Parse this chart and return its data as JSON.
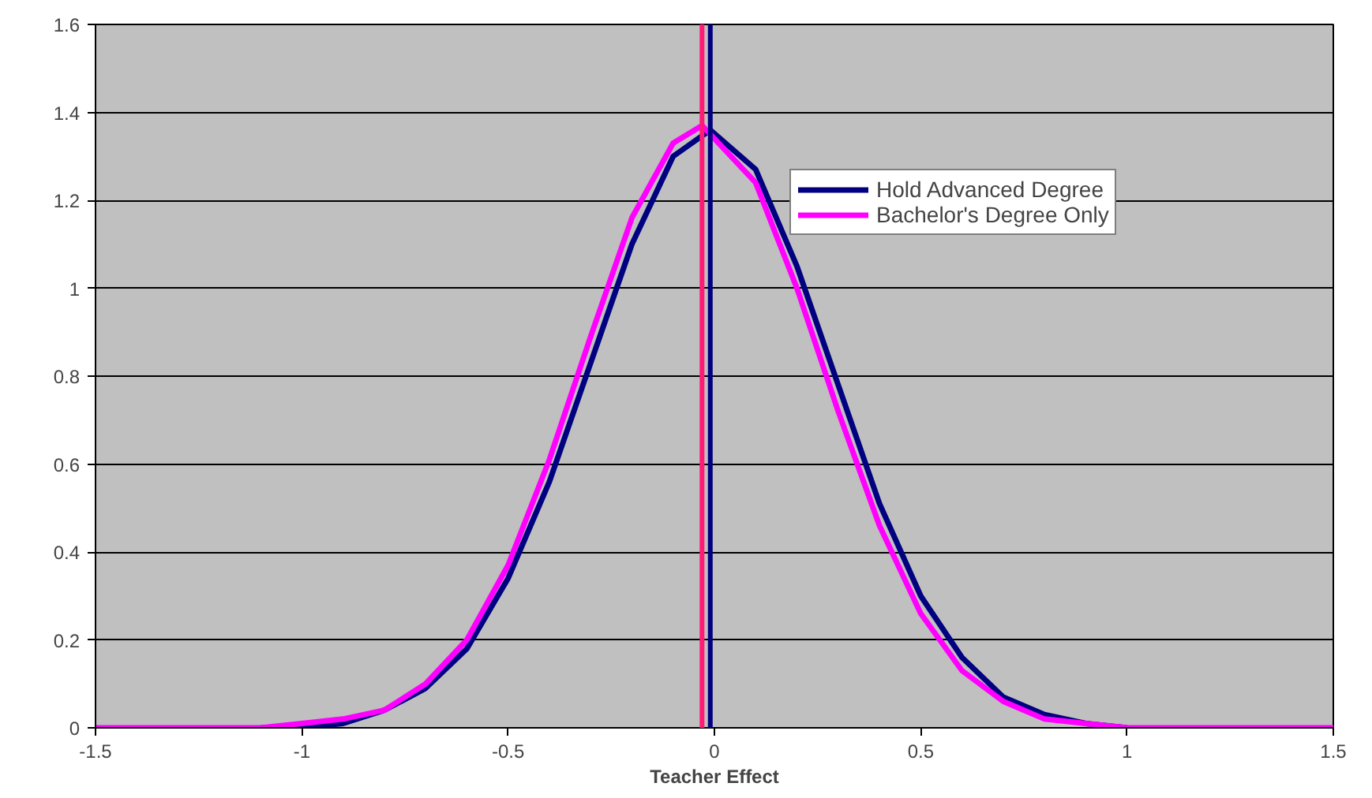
{
  "chart_data": {
    "type": "line",
    "xlabel": "Teacher Effect",
    "xlim": [
      -1.5,
      1.5
    ],
    "xticks": [
      -1.5,
      -1,
      -0.5,
      0,
      0.5,
      1,
      1.5
    ],
    "ylim": [
      0,
      1.6
    ],
    "yticks": [
      0,
      0.2,
      0.4,
      0.6,
      0.8,
      1,
      1.2,
      1.4,
      1.6
    ],
    "grid": "y",
    "legend": "top right",
    "line_style": "solid",
    "marker": "none",
    "series": [
      {
        "name": "Hold Advanced Degree",
        "color": "#000080",
        "x": [
          -1.1,
          -1.0,
          -0.9,
          -0.8,
          -0.7,
          -0.6,
          -0.5,
          -0.4,
          -0.3,
          -0.2,
          -0.1,
          -0.01,
          0.1,
          0.2,
          0.3,
          0.4,
          0.5,
          0.6,
          0.7,
          0.8,
          0.9,
          1.0
        ],
        "values": [
          0,
          0,
          0.01,
          0.04,
          0.09,
          0.18,
          0.34,
          0.56,
          0.83,
          1.1,
          1.3,
          1.36,
          1.27,
          1.05,
          0.78,
          0.51,
          0.3,
          0.16,
          0.07,
          0.03,
          0.01,
          0
        ]
      },
      {
        "name": "Bachelor's Degree Only",
        "color": "#ff00ff",
        "x": [
          -1.5,
          -1.2,
          -1.1,
          -1.0,
          -0.9,
          -0.8,
          -0.7,
          -0.6,
          -0.5,
          -0.4,
          -0.3,
          -0.2,
          -0.1,
          -0.03,
          0.1,
          0.2,
          0.3,
          0.4,
          0.5,
          0.6,
          0.7,
          0.8,
          0.9,
          1.0,
          1.1,
          1.2,
          1.5
        ],
        "values": [
          0,
          0,
          0,
          0.01,
          0.02,
          0.04,
          0.1,
          0.2,
          0.37,
          0.61,
          0.89,
          1.16,
          1.33,
          1.37,
          1.24,
          1.0,
          0.72,
          0.46,
          0.26,
          0.13,
          0.06,
          0.02,
          0.01,
          0,
          0,
          0,
          0
        ]
      }
    ],
    "ref_lines": [
      {
        "axis": "x",
        "value": -0.01,
        "color": "#000080"
      },
      {
        "axis": "x",
        "value": -0.03,
        "color": "#ff1a75"
      }
    ]
  }
}
